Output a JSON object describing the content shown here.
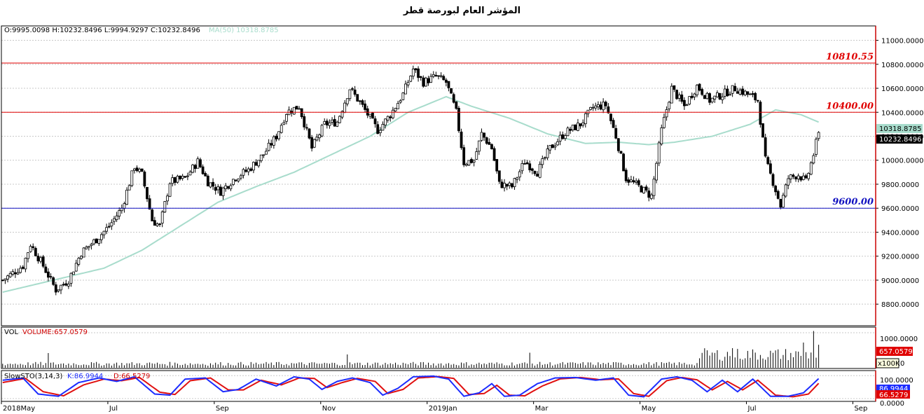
{
  "title": "المؤشر العام لبورصة قطر",
  "colors": {
    "candle": "#000000",
    "ma": "#a8dccc",
    "resistance": "#e00000",
    "support": "#1010c0",
    "grid": "#c8c8c8",
    "frame": "#cc0000",
    "stoch_k": "#1c2cff",
    "stoch_d": "#e01010",
    "volume": "#000000"
  },
  "info": {
    "ohlc_text": "O:9995.0098  H:10232.8496  L:9994.9297  C:10232.8496",
    "ma_text": "MA(50)  10318.8785",
    "vol_name": "VOL",
    "vol_text": "VOLUME:657.0579",
    "stoch_name": "SlowSTO(3,14,3)",
    "stoch_k_text": "K:86.9944",
    "stoch_d_text": "D:66.5279"
  },
  "chart_data": {
    "type": "candlestick",
    "price_axis": {
      "range": [
        8620,
        11120
      ],
      "ticks": [
        "8800.0000",
        "9000.0000",
        "9200.0000",
        "9400.0000",
        "9600.0000",
        "9800.0000",
        "10000.0000",
        "10200.0000",
        "10400.0000",
        "10600.0000",
        "10800.0000",
        "11000.0000"
      ]
    },
    "levels": [
      {
        "label": "10810.55",
        "value": 10810.55,
        "kind": "resistance"
      },
      {
        "label": "10400.00",
        "value": 10400.0,
        "kind": "resistance"
      },
      {
        "label": "9600.00",
        "value": 9600.0,
        "kind": "support"
      }
    ],
    "last_close_label": "10232.8496",
    "ma_label": "10318.8785",
    "x_axis": {
      "ticks": [
        {
          "label": "2018May",
          "index": 0
        },
        {
          "label": "Jul",
          "index": 42
        },
        {
          "label": "Sep",
          "index": 84
        },
        {
          "label": "Nov",
          "index": 126
        },
        {
          "label": "2019Jan",
          "index": 168
        },
        {
          "label": "Mar",
          "index": 210
        },
        {
          "label": "May",
          "index": 252
        },
        {
          "label": "Jul",
          "index": 294
        },
        {
          "label": "Sep",
          "index": 336
        }
      ],
      "bar_count": 345
    },
    "price_path": [
      {
        "i": 0,
        "v": 9000
      },
      {
        "i": 8,
        "v": 9120
      },
      {
        "i": 11,
        "v": 9300
      },
      {
        "i": 16,
        "v": 9120
      },
      {
        "i": 21,
        "v": 8920
      },
      {
        "i": 26,
        "v": 9000
      },
      {
        "i": 31,
        "v": 9230
      },
      {
        "i": 37,
        "v": 9340
      },
      {
        "i": 42,
        "v": 9450
      },
      {
        "i": 47,
        "v": 9600
      },
      {
        "i": 52,
        "v": 9950
      },
      {
        "i": 55,
        "v": 9880
      },
      {
        "i": 59,
        "v": 9500
      },
      {
        "i": 62,
        "v": 9450
      },
      {
        "i": 66,
        "v": 9820
      },
      {
        "i": 72,
        "v": 9850
      },
      {
        "i": 77,
        "v": 9990
      },
      {
        "i": 81,
        "v": 9820
      },
      {
        "i": 86,
        "v": 9740
      },
      {
        "i": 92,
        "v": 9860
      },
      {
        "i": 97,
        "v": 9920
      },
      {
        "i": 103,
        "v": 10050
      },
      {
        "i": 108,
        "v": 10200
      },
      {
        "i": 112,
        "v": 10400
      },
      {
        "i": 117,
        "v": 10450
      },
      {
        "i": 122,
        "v": 10100
      },
      {
        "i": 127,
        "v": 10300
      },
      {
        "i": 132,
        "v": 10320
      },
      {
        "i": 137,
        "v": 10600
      },
      {
        "i": 142,
        "v": 10450
      },
      {
        "i": 148,
        "v": 10250
      },
      {
        "i": 153,
        "v": 10380
      },
      {
        "i": 158,
        "v": 10550
      },
      {
        "i": 162,
        "v": 10760
      },
      {
        "i": 166,
        "v": 10650
      },
      {
        "i": 171,
        "v": 10700
      },
      {
        "i": 175,
        "v": 10650
      },
      {
        "i": 179,
        "v": 10400
      },
      {
        "i": 182,
        "v": 9980
      },
      {
        "i": 186,
        "v": 10000
      },
      {
        "i": 189,
        "v": 10220
      },
      {
        "i": 193,
        "v": 10100
      },
      {
        "i": 196,
        "v": 9800
      },
      {
        "i": 201,
        "v": 9780
      },
      {
        "i": 206,
        "v": 9990
      },
      {
        "i": 211,
        "v": 9900
      },
      {
        "i": 216,
        "v": 10100
      },
      {
        "i": 222,
        "v": 10230
      },
      {
        "i": 228,
        "v": 10300
      },
      {
        "i": 233,
        "v": 10440
      },
      {
        "i": 238,
        "v": 10460
      },
      {
        "i": 242,
        "v": 10200
      },
      {
        "i": 246,
        "v": 9850
      },
      {
        "i": 251,
        "v": 9780
      },
      {
        "i": 256,
        "v": 9700
      },
      {
        "i": 260,
        "v": 10250
      },
      {
        "i": 264,
        "v": 10600
      },
      {
        "i": 269,
        "v": 10450
      },
      {
        "i": 274,
        "v": 10620
      },
      {
        "i": 279,
        "v": 10500
      },
      {
        "i": 284,
        "v": 10550
      },
      {
        "i": 289,
        "v": 10600
      },
      {
        "i": 294,
        "v": 10550
      },
      {
        "i": 298,
        "v": 10500
      },
      {
        "i": 301,
        "v": 10000
      },
      {
        "i": 304,
        "v": 9820
      },
      {
        "i": 307,
        "v": 9620
      },
      {
        "i": 310,
        "v": 9850
      },
      {
        "i": 314,
        "v": 9880
      },
      {
        "i": 317,
        "v": 9820
      },
      {
        "i": 320,
        "v": 10050
      },
      {
        "i": 322,
        "v": 10232
      }
    ],
    "ma_path": [
      {
        "i": 0,
        "v": 8900
      },
      {
        "i": 20,
        "v": 9000
      },
      {
        "i": 40,
        "v": 9100
      },
      {
        "i": 55,
        "v": 9250
      },
      {
        "i": 70,
        "v": 9450
      },
      {
        "i": 85,
        "v": 9650
      },
      {
        "i": 100,
        "v": 9780
      },
      {
        "i": 115,
        "v": 9900
      },
      {
        "i": 130,
        "v": 10050
      },
      {
        "i": 145,
        "v": 10200
      },
      {
        "i": 160,
        "v": 10400
      },
      {
        "i": 175,
        "v": 10530
      },
      {
        "i": 185,
        "v": 10450
      },
      {
        "i": 200,
        "v": 10350
      },
      {
        "i": 215,
        "v": 10220
      },
      {
        "i": 230,
        "v": 10140
      },
      {
        "i": 243,
        "v": 10150
      },
      {
        "i": 255,
        "v": 10130
      },
      {
        "i": 265,
        "v": 10150
      },
      {
        "i": 280,
        "v": 10200
      },
      {
        "i": 295,
        "v": 10300
      },
      {
        "i": 305,
        "v": 10420
      },
      {
        "i": 315,
        "v": 10380
      },
      {
        "i": 322,
        "v": 10318
      }
    ],
    "volume": {
      "range": [
        0,
        1100
      ],
      "ticks": [
        "1000.0000"
      ],
      "unit_label": "x100K",
      "zero_label": "0",
      "last_label": "657.0579",
      "base_level": 120,
      "high_from_index": 275,
      "high_level": 400,
      "spikes": [
        {
          "i": 18,
          "v": 420
        },
        {
          "i": 136,
          "v": 380
        },
        {
          "i": 208,
          "v": 430
        },
        {
          "i": 288,
          "v": 560
        },
        {
          "i": 316,
          "v": 720
        },
        {
          "i": 320,
          "v": 1050
        },
        {
          "i": 322,
          "v": 657
        }
      ]
    },
    "stochastic": {
      "range": [
        0,
        110
      ],
      "ticks": [
        "100.0000",
        "0.0000"
      ],
      "k_label": "86.9944",
      "d_label": "66.5279",
      "k_path": [
        {
          "i": 0,
          "v": 80
        },
        {
          "i": 8,
          "v": 90
        },
        {
          "i": 14,
          "v": 20
        },
        {
          "i": 22,
          "v": 10
        },
        {
          "i": 30,
          "v": 70
        },
        {
          "i": 38,
          "v": 90
        },
        {
          "i": 45,
          "v": 75
        },
        {
          "i": 52,
          "v": 95
        },
        {
          "i": 60,
          "v": 20
        },
        {
          "i": 66,
          "v": 15
        },
        {
          "i": 72,
          "v": 85
        },
        {
          "i": 80,
          "v": 90
        },
        {
          "i": 87,
          "v": 30
        },
        {
          "i": 93,
          "v": 40
        },
        {
          "i": 100,
          "v": 85
        },
        {
          "i": 108,
          "v": 55
        },
        {
          "i": 115,
          "v": 95
        },
        {
          "i": 121,
          "v": 85
        },
        {
          "i": 126,
          "v": 40
        },
        {
          "i": 132,
          "v": 75
        },
        {
          "i": 138,
          "v": 90
        },
        {
          "i": 145,
          "v": 70
        },
        {
          "i": 150,
          "v": 15
        },
        {
          "i": 156,
          "v": 45
        },
        {
          "i": 162,
          "v": 95
        },
        {
          "i": 170,
          "v": 98
        },
        {
          "i": 176,
          "v": 85
        },
        {
          "i": 182,
          "v": 10
        },
        {
          "i": 188,
          "v": 25
        },
        {
          "i": 193,
          "v": 65
        },
        {
          "i": 198,
          "v": 10
        },
        {
          "i": 204,
          "v": 15
        },
        {
          "i": 211,
          "v": 65
        },
        {
          "i": 218,
          "v": 90
        },
        {
          "i": 226,
          "v": 92
        },
        {
          "i": 234,
          "v": 80
        },
        {
          "i": 241,
          "v": 90
        },
        {
          "i": 247,
          "v": 15
        },
        {
          "i": 253,
          "v": 8
        },
        {
          "i": 260,
          "v": 85
        },
        {
          "i": 266,
          "v": 95
        },
        {
          "i": 272,
          "v": 80
        },
        {
          "i": 278,
          "v": 30
        },
        {
          "i": 284,
          "v": 80
        },
        {
          "i": 290,
          "v": 30
        },
        {
          "i": 296,
          "v": 85
        },
        {
          "i": 303,
          "v": 10
        },
        {
          "i": 310,
          "v": 10
        },
        {
          "i": 316,
          "v": 25
        },
        {
          "i": 322,
          "v": 87
        }
      ],
      "d_path": [
        {
          "i": 0,
          "v": 70
        },
        {
          "i": 9,
          "v": 88
        },
        {
          "i": 16,
          "v": 30
        },
        {
          "i": 24,
          "v": 12
        },
        {
          "i": 32,
          "v": 60
        },
        {
          "i": 40,
          "v": 85
        },
        {
          "i": 47,
          "v": 78
        },
        {
          "i": 54,
          "v": 92
        },
        {
          "i": 62,
          "v": 28
        },
        {
          "i": 68,
          "v": 18
        },
        {
          "i": 74,
          "v": 78
        },
        {
          "i": 82,
          "v": 90
        },
        {
          "i": 89,
          "v": 38
        },
        {
          "i": 95,
          "v": 38
        },
        {
          "i": 102,
          "v": 80
        },
        {
          "i": 110,
          "v": 60
        },
        {
          "i": 117,
          "v": 90
        },
        {
          "i": 123,
          "v": 88
        },
        {
          "i": 128,
          "v": 48
        },
        {
          "i": 134,
          "v": 70
        },
        {
          "i": 140,
          "v": 88
        },
        {
          "i": 147,
          "v": 75
        },
        {
          "i": 152,
          "v": 22
        },
        {
          "i": 158,
          "v": 40
        },
        {
          "i": 164,
          "v": 90
        },
        {
          "i": 172,
          "v": 96
        },
        {
          "i": 178,
          "v": 88
        },
        {
          "i": 184,
          "v": 18
        },
        {
          "i": 190,
          "v": 22
        },
        {
          "i": 195,
          "v": 58
        },
        {
          "i": 200,
          "v": 15
        },
        {
          "i": 206,
          "v": 12
        },
        {
          "i": 213,
          "v": 55
        },
        {
          "i": 220,
          "v": 86
        },
        {
          "i": 228,
          "v": 92
        },
        {
          "i": 236,
          "v": 82
        },
        {
          "i": 243,
          "v": 86
        },
        {
          "i": 249,
          "v": 22
        },
        {
          "i": 255,
          "v": 10
        },
        {
          "i": 262,
          "v": 78
        },
        {
          "i": 268,
          "v": 92
        },
        {
          "i": 274,
          "v": 82
        },
        {
          "i": 280,
          "v": 38
        },
        {
          "i": 286,
          "v": 75
        },
        {
          "i": 292,
          "v": 38
        },
        {
          "i": 298,
          "v": 80
        },
        {
          "i": 305,
          "v": 15
        },
        {
          "i": 312,
          "v": 8
        },
        {
          "i": 318,
          "v": 20
        },
        {
          "i": 322,
          "v": 66.5
        }
      ]
    }
  }
}
